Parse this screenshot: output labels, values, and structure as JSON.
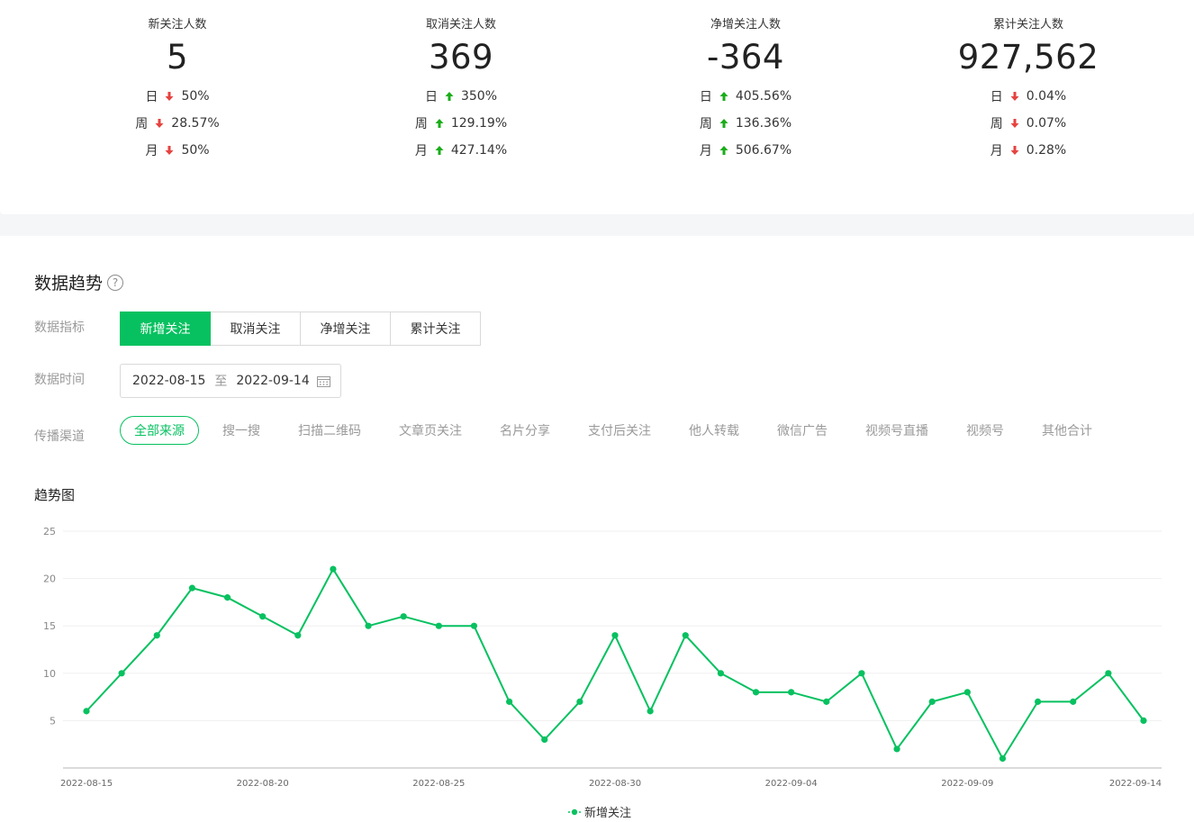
{
  "stats": [
    {
      "title": "新关注人数",
      "value": "5",
      "rows": [
        {
          "label": "日",
          "dir": "down",
          "pct": "50%"
        },
        {
          "label": "周",
          "dir": "down",
          "pct": "28.57%"
        },
        {
          "label": "月",
          "dir": "down",
          "pct": "50%"
        }
      ]
    },
    {
      "title": "取消关注人数",
      "value": "369",
      "rows": [
        {
          "label": "日",
          "dir": "up",
          "pct": "350%"
        },
        {
          "label": "周",
          "dir": "up",
          "pct": "129.19%"
        },
        {
          "label": "月",
          "dir": "up",
          "pct": "427.14%"
        }
      ]
    },
    {
      "title": "净增关注人数",
      "value": "-364",
      "rows": [
        {
          "label": "日",
          "dir": "up",
          "pct": "405.56%"
        },
        {
          "label": "周",
          "dir": "up",
          "pct": "136.36%"
        },
        {
          "label": "月",
          "dir": "up",
          "pct": "506.67%"
        }
      ]
    },
    {
      "title": "累计关注人数",
      "value": "927,562",
      "rows": [
        {
          "label": "日",
          "dir": "down",
          "pct": "0.04%"
        },
        {
          "label": "周",
          "dir": "down",
          "pct": "0.07%"
        },
        {
          "label": "月",
          "dir": "down",
          "pct": "0.28%"
        }
      ]
    }
  ],
  "colors": {
    "up": "#1aad19",
    "down": "#e64340",
    "accent": "#07c160"
  },
  "trend": {
    "title": "数据趋势",
    "help_glyph": "?",
    "metric_label": "数据指标",
    "time_label": "数据时间",
    "channel_label": "传播渠道",
    "chart_title": "趋势图",
    "tabs": [
      "新增关注",
      "取消关注",
      "净增关注",
      "累计关注"
    ],
    "date_start": "2022-08-15",
    "date_sep": "至",
    "date_end": "2022-09-14",
    "channels": [
      "全部来源",
      "搜一搜",
      "扫描二维码",
      "文章页关注",
      "名片分享",
      "支付后关注",
      "他人转载",
      "微信广告",
      "视频号直播",
      "视频号",
      "其他合计"
    ]
  },
  "chart_data": {
    "type": "line",
    "title": "趋势图",
    "xlabel": "",
    "ylabel": "",
    "ylim": [
      0,
      25
    ],
    "yticks": [
      5,
      10,
      15,
      20,
      25
    ],
    "x_tick_labels": [
      "2022-08-15",
      "2022-08-20",
      "2022-08-25",
      "2022-08-30",
      "2022-09-04",
      "2022-09-09",
      "2022-09-14"
    ],
    "x": [
      "2022-08-15",
      "2022-08-16",
      "2022-08-17",
      "2022-08-18",
      "2022-08-19",
      "2022-08-20",
      "2022-08-21",
      "2022-08-22",
      "2022-08-23",
      "2022-08-24",
      "2022-08-25",
      "2022-08-26",
      "2022-08-27",
      "2022-08-28",
      "2022-08-29",
      "2022-08-30",
      "2022-08-31",
      "2022-09-01",
      "2022-09-02",
      "2022-09-03",
      "2022-09-04",
      "2022-09-05",
      "2022-09-06",
      "2022-09-07",
      "2022-09-08",
      "2022-09-09",
      "2022-09-10",
      "2022-09-11",
      "2022-09-12",
      "2022-09-13",
      "2022-09-14"
    ],
    "series": [
      {
        "name": "新增关注",
        "color": "#07c160",
        "values": [
          6,
          10,
          14,
          19,
          18,
          16,
          14,
          21,
          15,
          16,
          15,
          15,
          7,
          3,
          7,
          14,
          6,
          14,
          10,
          8,
          8,
          7,
          10,
          2,
          7,
          8,
          1,
          7,
          7,
          10,
          5
        ]
      }
    ],
    "grid": true,
    "legend": "bottom-center"
  }
}
